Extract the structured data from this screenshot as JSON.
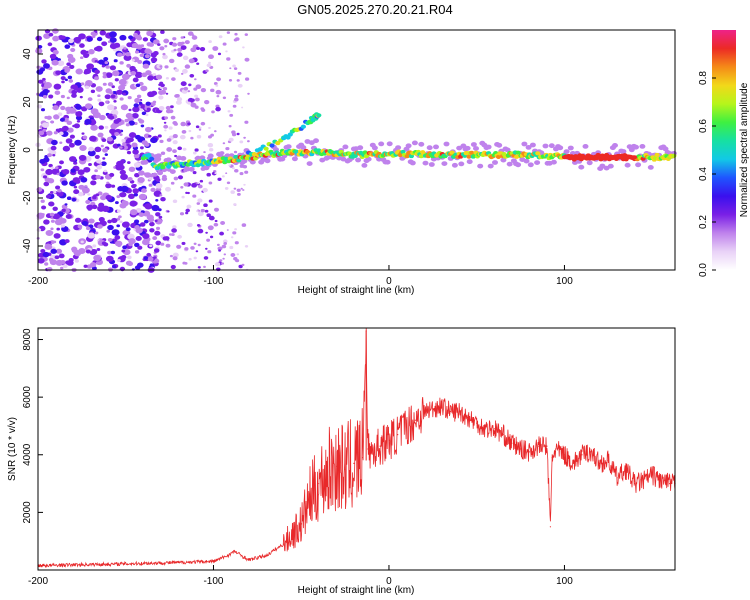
{
  "title": "GN05.2025.270.20.21.R04",
  "colors": {
    "signal_line": "#e8282a",
    "axis": "#000000",
    "colormap": [
      "#ffffff",
      "#e9d2f7",
      "#bf82ec",
      "#7a20e6",
      "#3a10ee",
      "#1f55ff",
      "#12c9e6",
      "#16e0a2",
      "#3ef041",
      "#b6f51b",
      "#f2d81a",
      "#f58a18",
      "#ec2a25",
      "#ee2288"
    ]
  },
  "chart_data": [
    {
      "id": "spectrogram",
      "type": "heatmap",
      "xlabel": "Height of straight line (km)",
      "ylabel": "Frequency (Hz)",
      "xlim": [
        -200,
        163
      ],
      "ylim": [
        -50,
        50
      ],
      "xticks": [
        "-200",
        "-100",
        "0",
        "100"
      ],
      "yticks": [
        "-40",
        "-20",
        "0",
        "20",
        "40"
      ],
      "colorbar": {
        "label": "Normalized spectral amplitude",
        "range": [
          0,
          1
        ],
        "ticks": [
          "0.0",
          "0.2",
          "0.4",
          "0.6",
          "0.8"
        ]
      },
      "ridge": {
        "description_free_points": [
          {
            "x": -135,
            "f": -7
          },
          {
            "x": -120,
            "f": -6
          },
          {
            "x": -100,
            "f": -5
          },
          {
            "x": -80,
            "f": -3
          },
          {
            "x": -60,
            "f": -1
          },
          {
            "x": -40,
            "f": -1
          },
          {
            "x": -20,
            "f": -2
          },
          {
            "x": 0,
            "f": -1.5
          },
          {
            "x": 40,
            "f": -2
          },
          {
            "x": 80,
            "f": -2
          },
          {
            "x": 100,
            "f": -3
          },
          {
            "x": 163,
            "f": -3
          }
        ],
        "branch": [
          {
            "x": -80,
            "f": -2
          },
          {
            "x": -60,
            "f": 5
          },
          {
            "x": -45,
            "f": 12
          },
          {
            "x": -40,
            "f": 15
          }
        ]
      }
    },
    {
      "id": "snr",
      "type": "line",
      "xlabel": "Height of straight line (km)",
      "ylabel": "SNR (10 * v/v)",
      "xlim": [
        -200,
        163
      ],
      "ylim": [
        0,
        8400
      ],
      "xticks": [
        "-200",
        "-100",
        "0",
        "100"
      ],
      "yticks": [
        "2000",
        "4000",
        "6000",
        "8000"
      ],
      "series": [
        {
          "x": [
            -200,
            -180,
            -160,
            -140,
            -120,
            -100,
            -92,
            -88,
            -80,
            -70,
            -60,
            -50,
            -45,
            -40,
            -35,
            -30,
            -25,
            -20,
            -15,
            -13,
            -12,
            -10,
            -5,
            0,
            5,
            10,
            15,
            20,
            25,
            30,
            35,
            40,
            45,
            50,
            55,
            60,
            65,
            70,
            75,
            80,
            85,
            90,
            92,
            93,
            95,
            100,
            105,
            110,
            115,
            120,
            125,
            130,
            135,
            140,
            145,
            150,
            155,
            160,
            163
          ],
          "y": [
            150,
            180,
            200,
            230,
            260,
            300,
            500,
            650,
            350,
            500,
            900,
            1600,
            2500,
            3000,
            3400,
            3600,
            3500,
            3700,
            3900,
            8300,
            4200,
            4100,
            4300,
            4500,
            4700,
            5000,
            5200,
            5500,
            5600,
            5700,
            5500,
            5500,
            5300,
            5100,
            4900,
            4900,
            4700,
            4400,
            4200,
            4100,
            4300,
            4300,
            1500,
            3900,
            4200,
            4000,
            3700,
            4000,
            4100,
            3700,
            3800,
            3200,
            3500,
            3000,
            3100,
            3300,
            3100,
            3000,
            3000
          ]
        }
      ]
    }
  ]
}
